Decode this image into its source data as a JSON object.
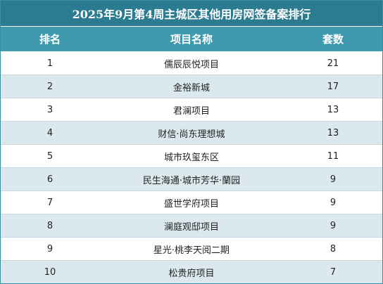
{
  "title": "2025年9月第4周主城区其他用房网签备案排行",
  "headers": {
    "rank": "排名",
    "project": "项目名称",
    "units": "套数"
  },
  "rows": [
    {
      "rank": "1",
      "project": "儒辰辰悦项目",
      "units": "21"
    },
    {
      "rank": "2",
      "project": "金裕新城",
      "units": "17"
    },
    {
      "rank": "3",
      "project": "君澜项目",
      "units": "13"
    },
    {
      "rank": "4",
      "project": "财信·尚东理想城",
      "units": "13"
    },
    {
      "rank": "5",
      "project": "城市玖玺东区",
      "units": "11"
    },
    {
      "rank": "6",
      "project": "民生海通·城市芳华·蘭园",
      "units": "9"
    },
    {
      "rank": "7",
      "project": "盛世学府项目",
      "units": "9"
    },
    {
      "rank": "8",
      "project": "澜庭观邸项目",
      "units": "9"
    },
    {
      "rank": "9",
      "project": "星光·桃李天阅二期",
      "units": "8"
    },
    {
      "rank": "10",
      "project": "松贵府项目",
      "units": "7"
    }
  ]
}
